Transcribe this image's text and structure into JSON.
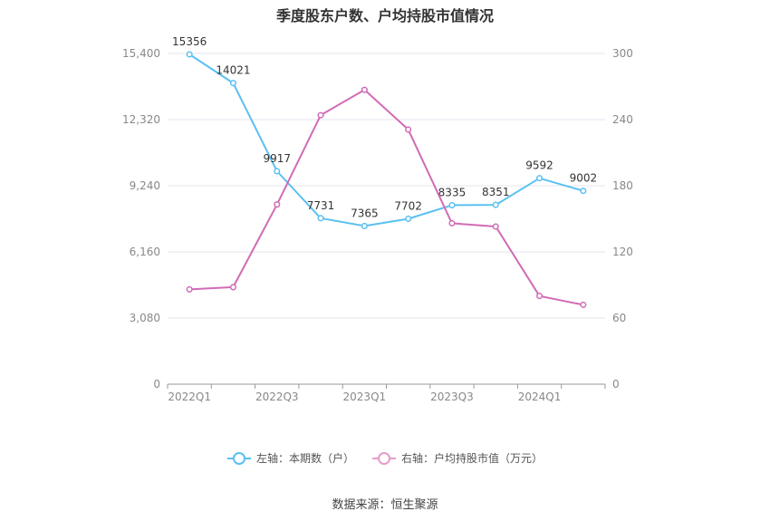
{
  "title": "季度股东户数、户均持股市值情况",
  "source": "数据来源：恒生聚源",
  "colors": {
    "left": "#5bc0f0",
    "right": "#d16bb5",
    "grid": "#e6e6ef",
    "axis": "#999999"
  },
  "legend": [
    {
      "label": "左轴：本期数（户）",
      "color": "#5bc0f0"
    },
    {
      "label": "右轴：户均持股市值（万元）",
      "color": "#e49ccc"
    }
  ],
  "chart_data": {
    "type": "line",
    "x": [
      "2022Q1",
      "2022Q2",
      "2022Q3",
      "2022Q4",
      "2023Q1",
      "2023Q2",
      "2023Q3",
      "2023Q4",
      "2024Q1",
      "2024Q2"
    ],
    "x_tick_labels": [
      "2022Q1",
      "",
      "2022Q3",
      "",
      "2023Q1",
      "",
      "2023Q3",
      "",
      "2024Q1",
      ""
    ],
    "y_left": {
      "ticks": [
        "0",
        "3,080",
        "6,160",
        "9,240",
        "12,320",
        "15,400"
      ],
      "lim": [
        0,
        15400
      ]
    },
    "y_right": {
      "ticks": [
        "0",
        "60",
        "120",
        "180",
        "240",
        "300"
      ],
      "lim": [
        0,
        300
      ]
    },
    "grid": true,
    "legend_position": "bottom",
    "series": [
      {
        "name": "左轴：本期数（户）",
        "axis": "left",
        "values": [
          15356,
          14021,
          9917,
          7731,
          7365,
          7702,
          8335,
          8351,
          9592,
          9002
        ],
        "labels": [
          "15356",
          "14021",
          "9917",
          "7731",
          "7365",
          "7702",
          "8335",
          "8351",
          "9592",
          "9002"
        ]
      },
      {
        "name": "右轴：户均持股市值（万元）",
        "axis": "right",
        "values": [
          86,
          88,
          163,
          244,
          267,
          231,
          146,
          143,
          80,
          72
        ]
      }
    ]
  }
}
